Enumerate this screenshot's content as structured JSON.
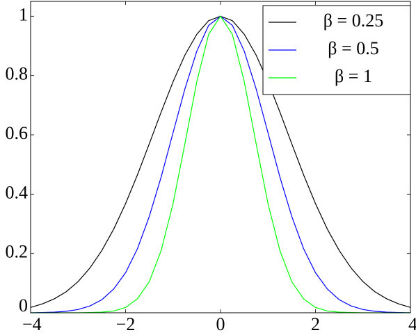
{
  "chart_data": {
    "type": "line",
    "x": [
      -4,
      -3.75,
      -3.5,
      -3.25,
      -3,
      -2.75,
      -2.5,
      -2.25,
      -2,
      -1.75,
      -1.5,
      -1.25,
      -1,
      -0.75,
      -0.5,
      -0.25,
      0,
      0.25,
      0.5,
      0.75,
      1,
      1.25,
      1.5,
      1.75,
      2,
      2.25,
      2.5,
      2.75,
      3,
      3.25,
      3.5,
      3.75,
      4
    ],
    "series": [
      {
        "name": "β = 0.25",
        "color": "#000000",
        "values": [
          0.018,
          0.03,
          0.047,
          0.071,
          0.105,
          0.151,
          0.21,
          0.282,
          0.368,
          0.465,
          0.57,
          0.677,
          0.779,
          0.869,
          0.939,
          0.985,
          1,
          0.985,
          0.939,
          0.869,
          0.779,
          0.677,
          0.57,
          0.465,
          0.368,
          0.282,
          0.21,
          0.151,
          0.105,
          0.071,
          0.047,
          0.03,
          0.018
        ]
      },
      {
        "name": "β = 0.5",
        "color": "#0000ff",
        "values": [
          0.0,
          0.001,
          0.002,
          0.005,
          0.011,
          0.023,
          0.044,
          0.08,
          0.135,
          0.216,
          0.325,
          0.458,
          0.607,
          0.755,
          0.882,
          0.969,
          1,
          0.969,
          0.882,
          0.755,
          0.607,
          0.458,
          0.325,
          0.216,
          0.135,
          0.08,
          0.044,
          0.023,
          0.011,
          0.005,
          0.002,
          0.001,
          0.0
        ]
      },
      {
        "name": "β = 1",
        "color": "#00ff00",
        "values": [
          0.0,
          0.0,
          0.0,
          0.0,
          0.0,
          0.001,
          0.002,
          0.006,
          0.018,
          0.047,
          0.105,
          0.21,
          0.368,
          0.57,
          0.779,
          0.939,
          1,
          0.939,
          0.779,
          0.57,
          0.368,
          0.21,
          0.105,
          0.047,
          0.018,
          0.006,
          0.002,
          0.001,
          0.0,
          0.0,
          0.0,
          0.0,
          0.0
        ]
      }
    ],
    "xlim": [
      -4,
      4
    ],
    "ylim": [
      0,
      1.05
    ],
    "xticks": [
      {
        "value": -4,
        "label": "−4"
      },
      {
        "value": -2,
        "label": "−2"
      },
      0,
      2,
      4
    ],
    "yticks": [
      0,
      0.2,
      0.4,
      0.6,
      0.8,
      1
    ],
    "legend": "upper right"
  }
}
